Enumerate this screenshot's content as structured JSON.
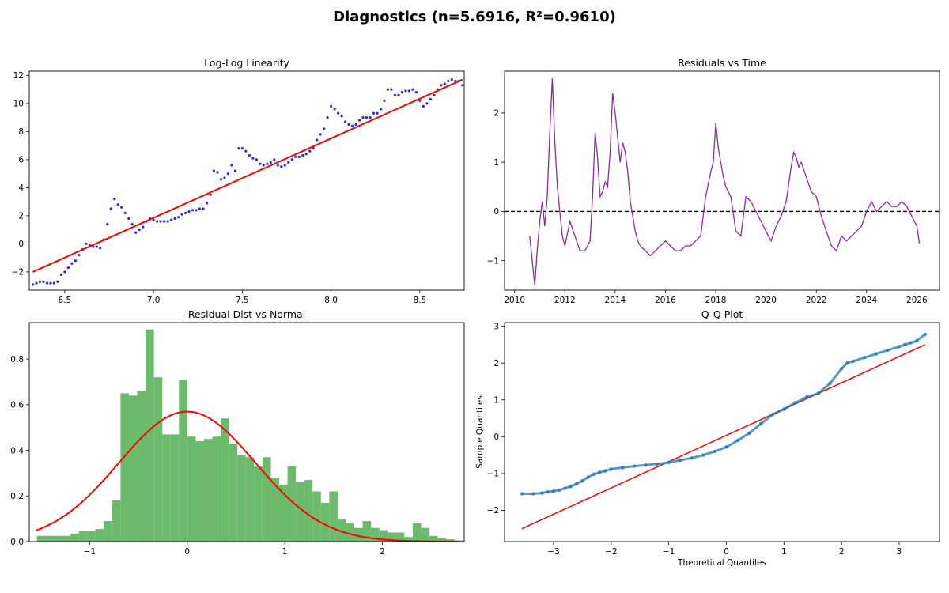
{
  "figure": {
    "suptitle": "Diagnostics (n=5.6916, R²=0.9610)"
  },
  "colors": {
    "scatter": "#0000ff",
    "fit": "#ff0000",
    "residual_line": "#8b2b9b",
    "hist_fill": "#5cb35c",
    "qq_points": "#1f77b4",
    "axis": "#000000"
  },
  "chart_data": [
    {
      "type": "scatter",
      "title": "Log-Log Linearity",
      "xlabel": "",
      "ylabel": "",
      "xlim": [
        6.3,
        8.75
      ],
      "ylim": [
        -3.3,
        12.3
      ],
      "xticks": [
        6.5,
        7.0,
        7.5,
        8.0,
        8.5
      ],
      "xticklabels": [
        "6.5",
        "7.0",
        "7.5",
        "8.0",
        "8.5"
      ],
      "yticks": [
        -2,
        0,
        2,
        4,
        6,
        8,
        10,
        12
      ],
      "yticklabels": [
        "−2",
        "0",
        "2",
        "4",
        "6",
        "8",
        "10",
        "12"
      ],
      "series": [
        {
          "kind": "points",
          "x": [
            6.32,
            6.34,
            6.36,
            6.38,
            6.4,
            6.42,
            6.44,
            6.46,
            6.48,
            6.5,
            6.52,
            6.54,
            6.56,
            6.58,
            6.6,
            6.62,
            6.64,
            6.66,
            6.68,
            6.7,
            6.72,
            6.74,
            6.76,
            6.78,
            6.8,
            6.82,
            6.84,
            6.86,
            6.88,
            6.9,
            6.92,
            6.94,
            6.96,
            6.98,
            7.0,
            7.02,
            7.04,
            7.06,
            7.08,
            7.1,
            7.12,
            7.14,
            7.16,
            7.18,
            7.2,
            7.22,
            7.24,
            7.26,
            7.28,
            7.3,
            7.32,
            7.34,
            7.36,
            7.38,
            7.4,
            7.42,
            7.44,
            7.46,
            7.48,
            7.5,
            7.52,
            7.54,
            7.56,
            7.58,
            7.6,
            7.62,
            7.64,
            7.66,
            7.68,
            7.7,
            7.72,
            7.74,
            7.76,
            7.78,
            7.8,
            7.82,
            7.84,
            7.86,
            7.88,
            7.9,
            7.92,
            7.94,
            7.96,
            7.98,
            8.0,
            8.02,
            8.04,
            8.06,
            8.08,
            8.1,
            8.12,
            8.14,
            8.16,
            8.18,
            8.2,
            8.22,
            8.24,
            8.26,
            8.28,
            8.3,
            8.32,
            8.34,
            8.36,
            8.38,
            8.4,
            8.42,
            8.44,
            8.46,
            8.48,
            8.5,
            8.52,
            8.54,
            8.56,
            8.58,
            8.6,
            8.62,
            8.64,
            8.66,
            8.68,
            8.7,
            8.72,
            8.74
          ],
          "y": [
            -2.9,
            -2.8,
            -2.7,
            -2.7,
            -2.8,
            -2.8,
            -2.8,
            -2.7,
            -2.2,
            -2.0,
            -1.7,
            -1.4,
            -1.2,
            -0.8,
            -0.4,
            0.0,
            -0.1,
            -0.2,
            -0.2,
            -0.3,
            0.3,
            1.4,
            2.5,
            3.2,
            2.8,
            2.6,
            2.2,
            1.8,
            1.4,
            0.8,
            1.0,
            1.2,
            1.6,
            1.8,
            1.7,
            1.6,
            1.6,
            1.6,
            1.6,
            1.7,
            1.8,
            1.9,
            2.1,
            2.2,
            2.3,
            2.4,
            2.4,
            2.5,
            2.5,
            2.9,
            3.5,
            5.2,
            5.1,
            4.6,
            4.7,
            5.0,
            5.6,
            5.2,
            6.8,
            6.8,
            6.6,
            6.3,
            6.1,
            6.0,
            5.7,
            5.6,
            5.7,
            5.8,
            6.0,
            5.6,
            5.5,
            5.6,
            5.8,
            6.0,
            6.2,
            6.2,
            6.3,
            6.4,
            6.6,
            6.8,
            7.4,
            7.8,
            8.2,
            9.0,
            9.8,
            9.6,
            9.3,
            9.1,
            8.7,
            8.5,
            8.4,
            8.5,
            8.8,
            9.0,
            9.0,
            9.0,
            9.3,
            9.3,
            9.6,
            10.2,
            11.0,
            11.0,
            10.6,
            10.6,
            10.8,
            10.9,
            10.9,
            11.0,
            10.8,
            10.2,
            9.8,
            10.0,
            10.3,
            10.6,
            11.0,
            11.3,
            11.4,
            11.6,
            11.7,
            11.6,
            11.6,
            11.3
          ]
        },
        {
          "kind": "line",
          "x": [
            6.32,
            8.74
          ],
          "y": [
            -2.0,
            11.7
          ]
        }
      ]
    },
    {
      "type": "line",
      "title": "Residuals vs Time",
      "xlabel": "",
      "ylabel": "",
      "xlim": [
        2009.6,
        2026.9
      ],
      "ylim": [
        -1.6,
        2.85
      ],
      "xticks": [
        2010,
        2012,
        2014,
        2016,
        2018,
        2020,
        2022,
        2024,
        2026
      ],
      "xticklabels": [
        "2010",
        "2012",
        "2014",
        "2016",
        "2018",
        "2020",
        "2022",
        "2024",
        "2026"
      ],
      "yticks": [
        -1,
        0,
        1,
        2
      ],
      "yticklabels": [
        "−1",
        "0",
        "1",
        "2"
      ],
      "reference_line": 0,
      "series": [
        {
          "x": [
            2010.6,
            2010.7,
            2010.8,
            2010.9,
            2011.0,
            2011.1,
            2011.2,
            2011.3,
            2011.4,
            2011.5,
            2011.6,
            2011.7,
            2011.8,
            2011.9,
            2012.0,
            2012.2,
            2012.4,
            2012.6,
            2012.8,
            2013.0,
            2013.1,
            2013.2,
            2013.3,
            2013.4,
            2013.5,
            2013.6,
            2013.7,
            2013.8,
            2013.9,
            2014.0,
            2014.1,
            2014.2,
            2014.3,
            2014.4,
            2014.5,
            2014.6,
            2014.7,
            2014.8,
            2014.9,
            2015.0,
            2015.2,
            2015.4,
            2015.6,
            2015.8,
            2016.0,
            2016.2,
            2016.4,
            2016.6,
            2016.8,
            2017.0,
            2017.2,
            2017.4,
            2017.6,
            2017.8,
            2017.9,
            2018.0,
            2018.1,
            2018.2,
            2018.3,
            2018.4,
            2018.6,
            2018.8,
            2019.0,
            2019.2,
            2019.4,
            2019.6,
            2019.8,
            2020.0,
            2020.2,
            2020.4,
            2020.6,
            2020.8,
            2021.0,
            2021.1,
            2021.2,
            2021.3,
            2021.4,
            2021.6,
            2021.8,
            2022.0,
            2022.2,
            2022.4,
            2022.6,
            2022.8,
            2023.0,
            2023.2,
            2023.4,
            2023.6,
            2023.8,
            2024.0,
            2024.2,
            2024.4,
            2024.6,
            2024.8,
            2025.0,
            2025.2,
            2025.4,
            2025.6,
            2025.8,
            2026.0,
            2026.1
          ],
          "y": [
            -0.5,
            -1.0,
            -1.5,
            -0.8,
            -0.2,
            0.2,
            -0.3,
            0.3,
            1.6,
            2.7,
            1.4,
            0.5,
            0.0,
            -0.5,
            -0.7,
            -0.2,
            -0.5,
            -0.8,
            -0.8,
            -0.6,
            0.3,
            1.6,
            1.1,
            0.3,
            0.4,
            0.6,
            0.5,
            1.2,
            2.4,
            2.0,
            1.5,
            1.0,
            1.4,
            1.2,
            0.8,
            0.2,
            -0.1,
            -0.4,
            -0.6,
            -0.7,
            -0.8,
            -0.9,
            -0.8,
            -0.7,
            -0.6,
            -0.7,
            -0.8,
            -0.8,
            -0.7,
            -0.7,
            -0.6,
            -0.5,
            0.3,
            0.8,
            1.0,
            1.8,
            1.3,
            1.0,
            0.7,
            0.5,
            0.3,
            -0.4,
            -0.5,
            0.3,
            0.2,
            0.0,
            -0.2,
            -0.4,
            -0.6,
            -0.3,
            -0.1,
            0.2,
            0.9,
            1.2,
            1.1,
            0.9,
            1.0,
            0.7,
            0.4,
            0.3,
            -0.1,
            -0.4,
            -0.7,
            -0.8,
            -0.5,
            -0.6,
            -0.5,
            -0.4,
            -0.3,
            0.0,
            0.2,
            0.0,
            0.1,
            0.2,
            0.1,
            0.1,
            0.2,
            0.1,
            -0.1,
            -0.3,
            -0.65
          ]
        }
      ]
    },
    {
      "type": "bar",
      "title": "Residual Dist vs Normal",
      "xlabel": "",
      "ylabel": "",
      "xlim": [
        -1.62,
        2.84
      ],
      "ylim": [
        0,
        0.96
      ],
      "xticks": [
        -1,
        0,
        1,
        2
      ],
      "xticklabels": [
        "−1",
        "0",
        "1",
        "2"
      ],
      "yticks": [
        0.0,
        0.2,
        0.4,
        0.6,
        0.8
      ],
      "yticklabels": [
        "0.0",
        "0.2",
        "0.4",
        "0.6",
        "0.8"
      ],
      "bin_start": -1.54,
      "bin_width": 0.0856,
      "values": [
        0.025,
        0.025,
        0.025,
        0.025,
        0.035,
        0.045,
        0.045,
        0.055,
        0.09,
        0.18,
        0.65,
        0.64,
        0.66,
        0.93,
        0.72,
        0.47,
        0.47,
        0.71,
        0.46,
        0.44,
        0.45,
        0.46,
        0.54,
        0.43,
        0.38,
        0.37,
        0.33,
        0.37,
        0.28,
        0.25,
        0.33,
        0.26,
        0.27,
        0.22,
        0.17,
        0.22,
        0.1,
        0.08,
        0.06,
        0.09,
        0.06,
        0.05,
        0.04,
        0.04,
        0.02,
        0.08,
        0.06,
        0.025,
        0.015,
        0.01,
        0.005,
        0.005,
        0.0,
        0.0
      ],
      "normal_curve": {
        "mean": 0.0,
        "std": 0.7,
        "x_range": [
          -1.55,
          2.78
        ]
      }
    },
    {
      "type": "scatter",
      "title": "Q-Q Plot",
      "xlabel": "Theoretical Quantiles",
      "ylabel": "Sample Quantiles",
      "xlim": [
        -3.85,
        3.7
      ],
      "ylim": [
        -2.85,
        3.1
      ],
      "xticks": [
        -3,
        -2,
        -1,
        0,
        1,
        2,
        3
      ],
      "xticklabels": [
        "−3",
        "−2",
        "−1",
        "0",
        "1",
        "2",
        "3"
      ],
      "yticks": [
        -2,
        -1,
        0,
        1,
        2,
        3
      ],
      "yticklabels": [
        "−2",
        "−1",
        "0",
        "1",
        "2",
        "3"
      ],
      "series": [
        {
          "kind": "points",
          "x": [
            -3.55,
            -3.35,
            -3.2,
            -3.1,
            -3.0,
            -2.9,
            -2.8,
            -2.7,
            -2.6,
            -2.5,
            -2.4,
            -2.3,
            -2.2,
            -2.1,
            -2.0,
            -1.8,
            -1.6,
            -1.4,
            -1.2,
            -1.0,
            -0.8,
            -0.6,
            -0.4,
            -0.2,
            0.0,
            0.2,
            0.4,
            0.6,
            0.8,
            1.0,
            1.2,
            1.4,
            1.6,
            1.8,
            2.0,
            2.1,
            2.2,
            2.4,
            2.6,
            2.8,
            3.0,
            3.1,
            3.2,
            3.3,
            3.45
          ],
          "y": [
            -1.55,
            -1.55,
            -1.53,
            -1.5,
            -1.48,
            -1.45,
            -1.4,
            -1.35,
            -1.28,
            -1.2,
            -1.1,
            -1.02,
            -0.97,
            -0.93,
            -0.88,
            -0.84,
            -0.8,
            -0.77,
            -0.74,
            -0.7,
            -0.64,
            -0.58,
            -0.5,
            -0.4,
            -0.28,
            -0.1,
            0.1,
            0.35,
            0.6,
            0.75,
            0.92,
            1.08,
            1.18,
            1.45,
            1.85,
            2.0,
            2.05,
            2.15,
            2.25,
            2.35,
            2.45,
            2.5,
            2.55,
            2.6,
            2.78
          ]
        },
        {
          "kind": "line",
          "x": [
            -3.55,
            3.45
          ],
          "y": [
            -2.5,
            2.5
          ]
        }
      ]
    }
  ]
}
